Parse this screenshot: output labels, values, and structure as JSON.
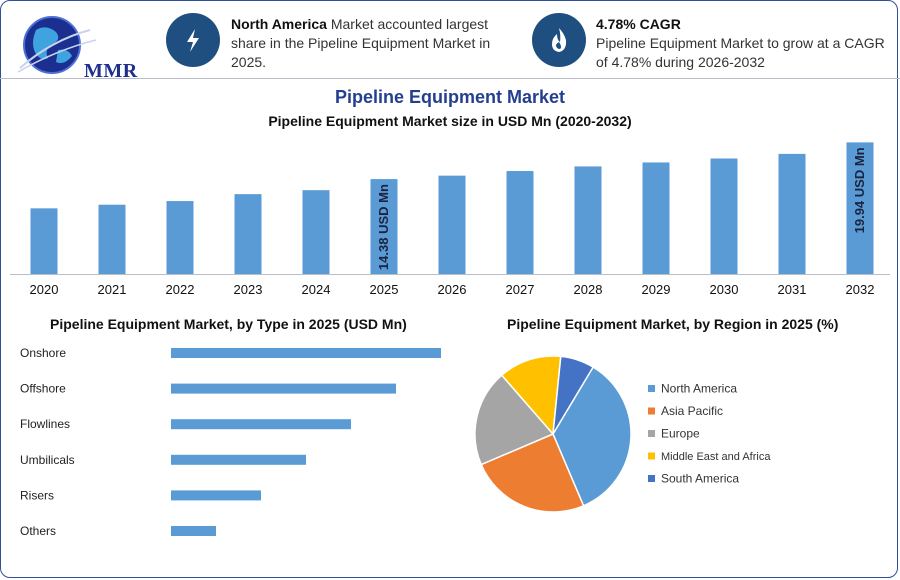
{
  "brand": {
    "logo_text": "MMR"
  },
  "info_cards": [
    {
      "icon": "lightning-icon",
      "bold": "North America",
      "text": " Market accounted largest share in the Pipeline Equipment Market in 2025."
    },
    {
      "icon": "flame-icon",
      "bold": "4.78% CAGR",
      "text": "Pipeline Equipment Market to grow at a CAGR of 4.78% during 2026-2032"
    }
  ],
  "main_title": "Pipeline Equipment Market",
  "colors": {
    "bar": "#5b9bd5",
    "brand": "#243f8f",
    "icon_bg": "#1e4f80"
  },
  "chart_data": [
    {
      "type": "bar",
      "title": "Pipeline Equipment Market size in USD Mn (2020-2032)",
      "categories": [
        "2020",
        "2021",
        "2022",
        "2023",
        "2024",
        "2025",
        "2026",
        "2027",
        "2028",
        "2029",
        "2030",
        "2031",
        "2032"
      ],
      "values": [
        9.95,
        10.5,
        11.05,
        12.1,
        12.7,
        14.38,
        14.9,
        15.6,
        16.3,
        16.9,
        17.5,
        18.2,
        19.94
      ],
      "data_labels": [
        {
          "category": "2025",
          "text": "14.38 USD Mn"
        },
        {
          "category": "2032",
          "text": "19.94 USD Mn"
        }
      ],
      "ylim": [
        0,
        20
      ]
    },
    {
      "type": "bar",
      "orientation": "horizontal",
      "title": "Pipeline Equipment Market, by Type in 2025 (USD Mn)",
      "categories": [
        "Onshore",
        "Offshore",
        "Flowlines",
        "Umbilicals",
        "Risers",
        "Others"
      ],
      "values": [
        6.0,
        5.0,
        4.0,
        3.0,
        2.0,
        1.0
      ],
      "xlim": [
        0,
        6
      ]
    },
    {
      "type": "pie",
      "title": "Pipeline Equipment Market, by Region in 2025 (%)",
      "categories": [
        "North America",
        "Asia Pacific",
        "Europe",
        "Middle East and Africa",
        "South America"
      ],
      "values": [
        35,
        25,
        20,
        13,
        7
      ],
      "colors": [
        "#5b9bd5",
        "#ed7d31",
        "#a5a5a5",
        "#ffc000",
        "#4472c4"
      ],
      "legend": "right"
    }
  ]
}
